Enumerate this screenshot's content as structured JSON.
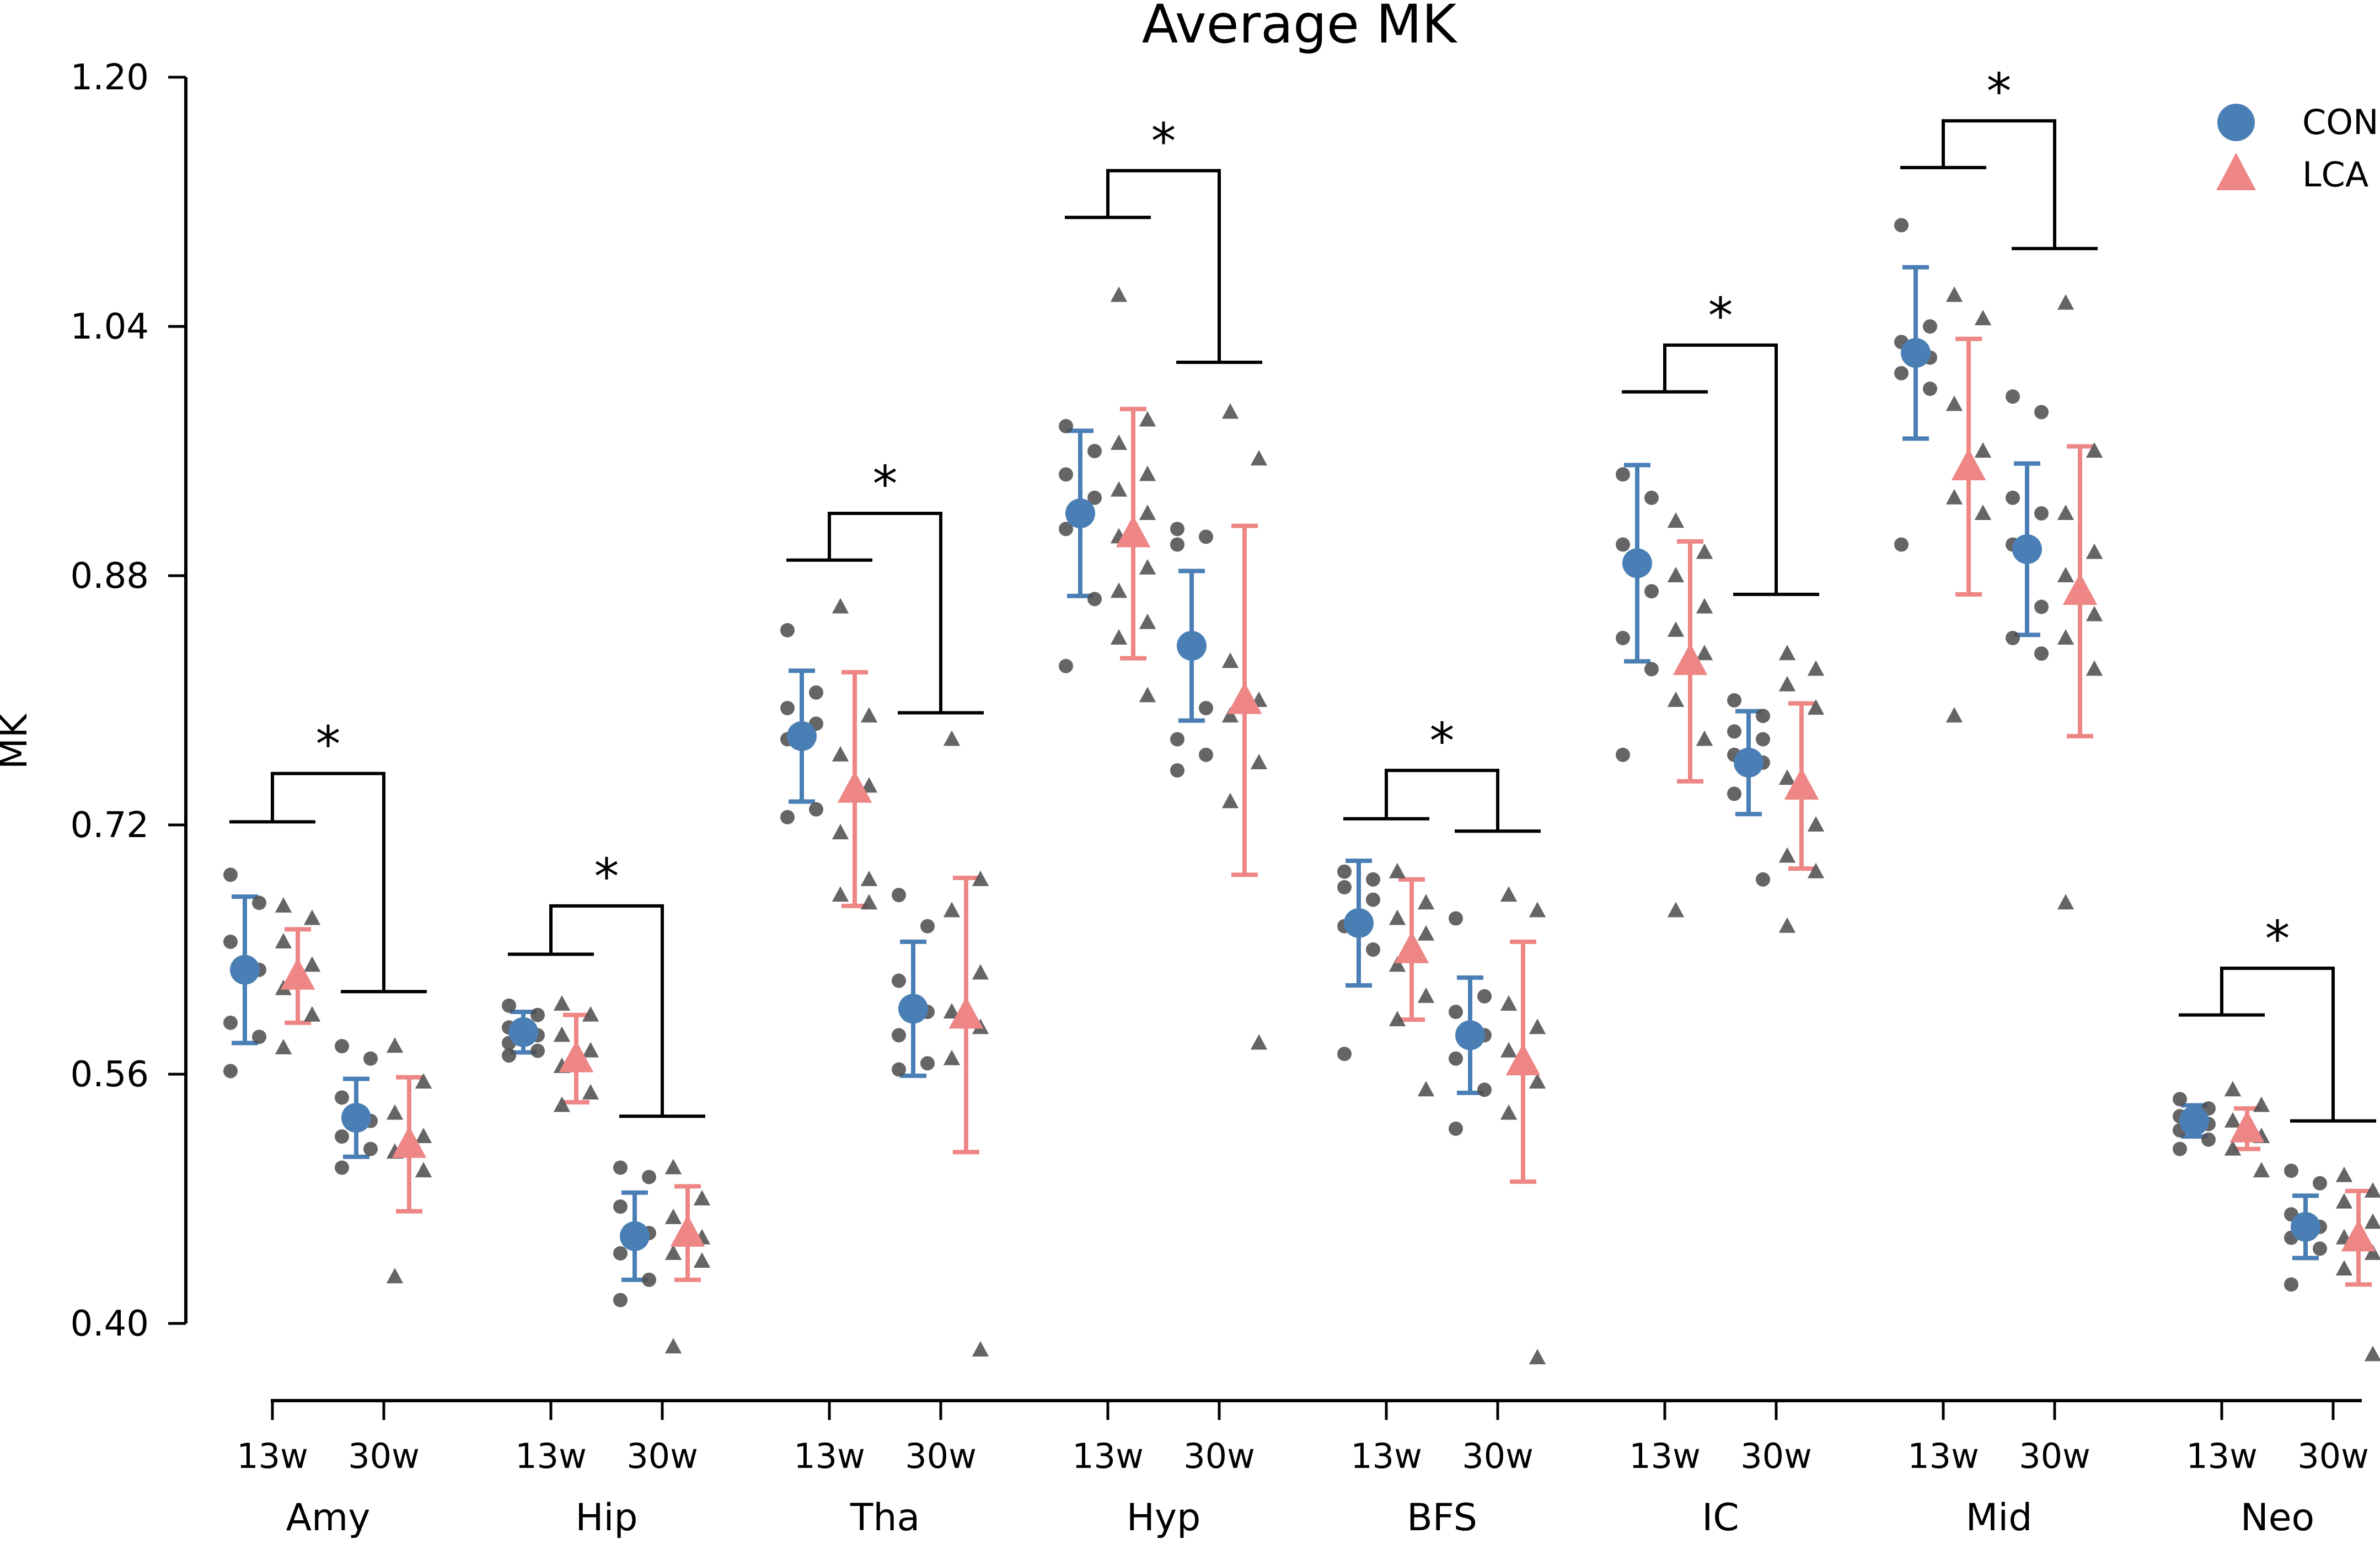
{
  "chart_data": {
    "type": "scatter",
    "title": "Average MK",
    "ylabel": "MK",
    "xlabel": "",
    "ylim": [
      0.38,
      1.2
    ],
    "yticks": [
      0.4,
      0.56,
      0.72,
      0.88,
      1.04,
      1.2
    ],
    "ytick_labels": [
      "0.40",
      "0.56",
      "0.72",
      "0.88",
      "1.04",
      "1.20"
    ],
    "timepoints": [
      "13w",
      "30w"
    ],
    "regions": [
      "Amy",
      "Hip",
      "Tha",
      "Hyp",
      "BFS",
      "IC",
      "Mid",
      "Neo"
    ],
    "significance_label": "*",
    "colors": {
      "CON": "#4a7fb5",
      "LCA": "#ee8686",
      "points": "#505050"
    },
    "legend": {
      "position": "top-right",
      "entries": [
        "CON",
        "LCA"
      ]
    },
    "series": [
      {
        "name": "CON",
        "marker": "circle",
        "mean": [
          [
            0.627,
            0.532
          ],
          [
            0.587,
            0.456
          ],
          [
            0.777,
            0.602
          ],
          [
            0.92,
            0.835
          ],
          [
            0.657,
            0.585
          ],
          [
            0.888,
            0.76
          ],
          [
            1.023,
            0.897
          ],
          [
            0.53,
            0.462
          ]
        ],
        "err": [
          [
            0.047,
            0.025
          ],
          [
            0.013,
            0.028
          ],
          [
            0.042,
            0.043
          ],
          [
            0.053,
            0.048
          ],
          [
            0.04,
            0.037
          ],
          [
            0.063,
            0.033
          ],
          [
            0.055,
            0.055
          ],
          [
            0.01,
            0.02
          ]
        ],
        "points": [
          [
            [
              0.688,
              0.67,
              0.645,
              0.627,
              0.593,
              0.584,
              0.562
            ],
            [
              0.578,
              0.57,
              0.545,
              0.53,
              0.52,
              0.512,
              0.5
            ]
          ],
          [
            [
              0.604,
              0.598,
              0.59,
              0.585,
              0.58,
              0.575,
              0.572
            ],
            [
              0.5,
              0.494,
              0.475,
              0.458,
              0.445,
              0.428,
              0.415
            ]
          ],
          [
            [
              0.845,
              0.805,
              0.795,
              0.785,
              0.775,
              0.73,
              0.725
            ],
            [
              0.675,
              0.655,
              0.62,
              0.6,
              0.585,
              0.567,
              0.563
            ]
          ],
          [
            [
              0.976,
              0.96,
              0.945,
              0.93,
              0.91,
              0.865,
              0.822
            ],
            [
              0.91,
              0.905,
              0.9,
              0.795,
              0.775,
              0.765,
              0.755
            ]
          ],
          [
            [
              0.69,
              0.685,
              0.68,
              0.672,
              0.655,
              0.64,
              0.573
            ],
            [
              0.66,
              0.61,
              0.6,
              0.585,
              0.57,
              0.55,
              0.525
            ]
          ],
          [
            [
              0.945,
              0.93,
              0.9,
              0.87,
              0.84,
              0.82,
              0.765
            ],
            [
              0.8,
              0.79,
              0.78,
              0.775,
              0.765,
              0.76,
              0.74,
              0.685
            ]
          ],
          [
            [
              1.105,
              1.04,
              1.03,
              1.02,
              1.01,
              1.0,
              0.9
            ],
            [
              0.995,
              0.985,
              0.93,
              0.92,
              0.9,
              0.86,
              0.84,
              0.83
            ]
          ],
          [
            [
              0.544,
              0.538,
              0.533,
              0.528,
              0.524,
              0.518,
              0.512
            ],
            [
              0.498,
              0.49,
              0.47,
              0.462,
              0.455,
              0.448,
              0.425
            ]
          ]
        ]
      },
      {
        "name": "LCA",
        "marker": "triangle",
        "mean": [
          [
            0.623,
            0.515
          ],
          [
            0.57,
            0.458
          ],
          [
            0.743,
            0.598
          ],
          [
            0.907,
            0.8
          ],
          [
            0.64,
            0.568
          ],
          [
            0.825,
            0.745
          ],
          [
            0.95,
            0.87
          ],
          [
            0.525,
            0.455
          ]
        ],
        "err": [
          [
            0.03,
            0.043
          ],
          [
            0.028,
            0.03
          ],
          [
            0.075,
            0.088
          ],
          [
            0.08,
            0.112
          ],
          [
            0.045,
            0.077
          ],
          [
            0.077,
            0.053
          ],
          [
            0.082,
            0.093
          ],
          [
            0.013,
            0.03
          ]
        ],
        "points": [
          [
            [
              0.668,
              0.66,
              0.645,
              0.63,
              0.615,
              0.598,
              0.577
            ],
            [
              0.578,
              0.555,
              0.535,
              0.52,
              0.51,
              0.498,
              0.43
            ]
          ],
          [
            [
              0.605,
              0.598,
              0.585,
              0.575,
              0.565,
              0.548,
              0.54
            ],
            [
              0.5,
              0.48,
              0.468,
              0.455,
              0.445,
              0.44,
              0.385
            ]
          ],
          [
            [
              0.86,
              0.79,
              0.765,
              0.745,
              0.715,
              0.685,
              0.675,
              0.67
            ],
            [
              0.775,
              0.685,
              0.665,
              0.625,
              0.6,
              0.59,
              0.57,
              0.383
            ]
          ],
          [
            [
              1.06,
              0.98,
              0.965,
              0.945,
              0.935,
              0.92,
              0.905,
              0.885,
              0.87,
              0.85,
              0.84,
              0.803
            ],
            [
              0.985,
              0.955,
              0.825,
              0.8,
              0.79,
              0.76,
              0.735,
              0.58
            ]
          ],
          [
            [
              0.69,
              0.67,
              0.66,
              0.65,
              0.63,
              0.61,
              0.595,
              0.55
            ],
            [
              0.675,
              0.665,
              0.605,
              0.59,
              0.575,
              0.555,
              0.535,
              0.378
            ]
          ],
          [
            [
              0.915,
              0.895,
              0.88,
              0.86,
              0.845,
              0.83,
              0.8,
              0.775,
              0.665
            ],
            [
              0.83,
              0.82,
              0.81,
              0.795,
              0.75,
              0.72,
              0.7,
              0.69,
              0.655
            ]
          ],
          [
            [
              1.06,
              1.045,
              0.99,
              0.96,
              0.93,
              0.92,
              0.79
            ],
            [
              1.055,
              0.96,
              0.92,
              0.895,
              0.88,
              0.855,
              0.84,
              0.82,
              0.67
            ]
          ],
          [
            [
              0.55,
              0.54,
              0.53,
              0.52,
              0.512,
              0.498
            ],
            [
              0.495,
              0.485,
              0.478,
              0.465,
              0.455,
              0.445,
              0.435,
              0.38
            ]
          ]
        ]
      }
    ],
    "significance_brackets": [
      {
        "region": "Amy",
        "label": "*",
        "y13": 0.722,
        "y30": 0.613,
        "top": 0.753
      },
      {
        "region": "Hip",
        "label": "*",
        "y13": 0.637,
        "y30": 0.533,
        "top": 0.668
      },
      {
        "region": "Tha",
        "label": "*",
        "y13": 0.89,
        "y30": 0.792,
        "top": 0.92
      },
      {
        "region": "Hyp",
        "label": "*",
        "y13": 1.11,
        "y30": 1.017,
        "top": 1.14
      },
      {
        "region": "BFS",
        "label": "*",
        "y13": 0.724,
        "y30": 0.716,
        "top": 0.755
      },
      {
        "region": "IC",
        "label": "*",
        "y13": 0.998,
        "y30": 0.868,
        "top": 1.028
      },
      {
        "region": "Mid",
        "label": "*",
        "y13": 1.142,
        "y30": 1.09,
        "top": 1.172
      },
      {
        "region": "Neo",
        "label": "*",
        "y13": 0.598,
        "y30": 0.53,
        "top": 0.628
      }
    ]
  }
}
